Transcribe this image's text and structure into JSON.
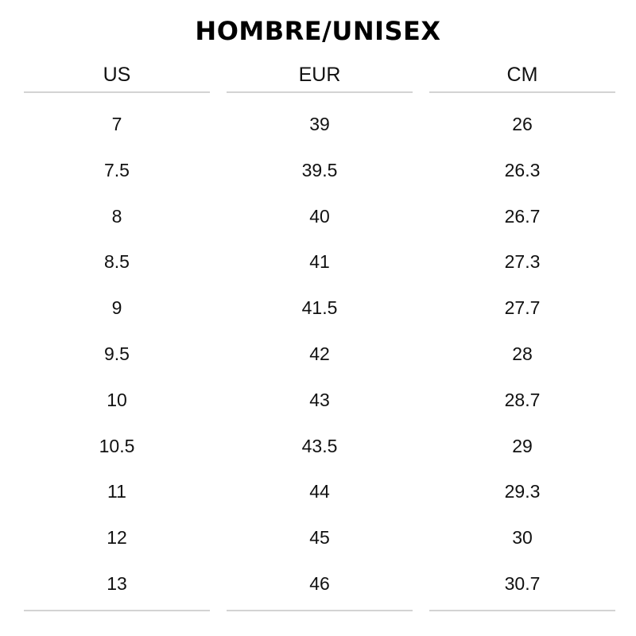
{
  "title": "HOMBRE/UNISEX",
  "columns": [
    "US",
    "EUR",
    "CM"
  ],
  "rows": [
    [
      "7",
      "39",
      "26"
    ],
    [
      "7.5",
      "39.5",
      "26.3"
    ],
    [
      "8",
      "40",
      "26.7"
    ],
    [
      "8.5",
      "41",
      "27.3"
    ],
    [
      "9",
      "41.5",
      "27.7"
    ],
    [
      "9.5",
      "42",
      "28"
    ],
    [
      "10",
      "43",
      "28.7"
    ],
    [
      "10.5",
      "43.5",
      "29"
    ],
    [
      "11",
      "44",
      "29.3"
    ],
    [
      "12",
      "45",
      "30"
    ],
    [
      "13",
      "46",
      "30.7"
    ]
  ]
}
